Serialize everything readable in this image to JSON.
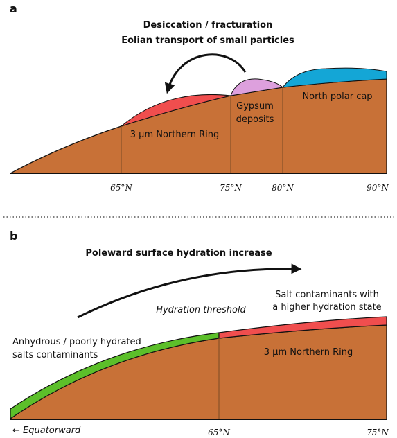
{
  "panel_a": {
    "label": "a",
    "title_lines": [
      "Desiccation / fracturation",
      "Eolian transport of small particles"
    ],
    "ring_label": "3 µm Northern Ring",
    "gypsum_lines": [
      "Gypsum",
      "deposits"
    ],
    "cap_label": "North polar cap",
    "latitudes": [
      "65°N",
      "75°N",
      "80°N",
      "90°N"
    ]
  },
  "panel_b": {
    "label": "b",
    "title": "Poleward surface hydration increase",
    "threshold": "Hydration threshold",
    "salt_high_lines": [
      "Salt contaminants with",
      "a higher hydration state"
    ],
    "salt_low_lines": [
      "Anhydrous / poorly hydrated",
      "salts contaminants"
    ],
    "ring_label": "3 µm Northern Ring",
    "equatorward": "← Equatorward",
    "latitudes": [
      "65°N",
      "75°N"
    ]
  }
}
